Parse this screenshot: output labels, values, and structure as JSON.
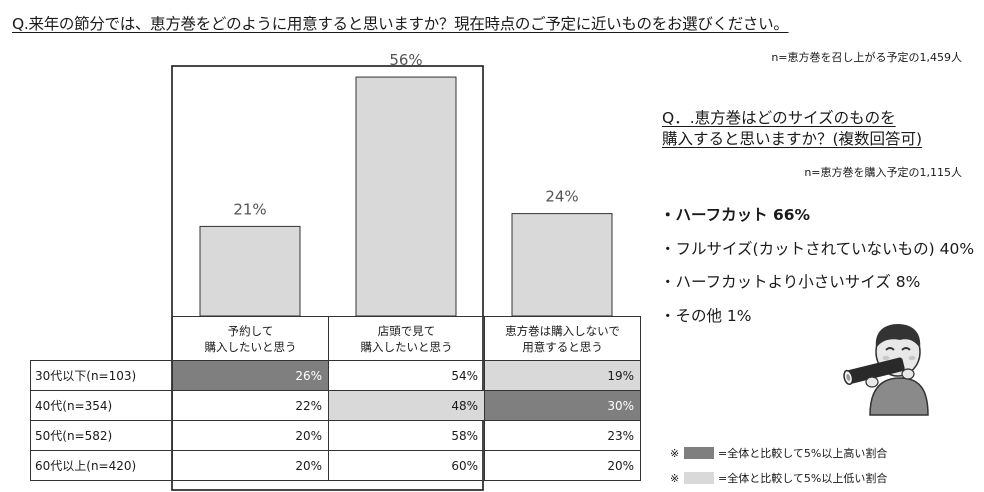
{
  "main_question": "Q.来年の節分では、恵方巻をどのように用意すると思いますか？現在時点のご予定に近いものをお選びください。",
  "main_note": "n=恵方巻を召し上がる予定の1,459人",
  "chart_data": {
    "type": "bar",
    "categories": [
      "予約して\n購入したいと思う",
      "店頭で見て\n購入したいと思う",
      "恵方巻は購入しないで\n用意すると思う"
    ],
    "values": [
      21,
      56,
      24
    ],
    "value_labels": [
      "21%",
      "56%",
      "24%"
    ],
    "highlighted_category_index": 1,
    "ylim": [
      0,
      60
    ],
    "bar_color": "#d9d9d9",
    "grid": false
  },
  "table": {
    "headers": [
      [
        "予約して",
        "購入したいと思う"
      ],
      [
        "店頭で見て",
        "購入したいと思う"
      ],
      [
        "恵方巻は購入しないで",
        "用意すると思う"
      ]
    ],
    "rows": [
      {
        "label": "30代以下(n=103)",
        "values": [
          "26%",
          "54%",
          "19%"
        ],
        "shading": [
          "high",
          "none",
          "low"
        ]
      },
      {
        "label": "40代(n=354)",
        "values": [
          "22%",
          "48%",
          "30%"
        ],
        "shading": [
          "none",
          "low",
          "high"
        ]
      },
      {
        "label": "50代(n=582)",
        "values": [
          "20%",
          "58%",
          "23%"
        ],
        "shading": [
          "none",
          "none",
          "none"
        ]
      },
      {
        "label": "60代以上(n=420)",
        "values": [
          "20%",
          "60%",
          "20%"
        ],
        "shading": [
          "none",
          "none",
          "none"
        ]
      }
    ]
  },
  "side_question": {
    "line1": "Q．.恵方巻はどのサイズのものを",
    "line2": "購入すると思いますか？(複数回答可)"
  },
  "side_note": "n=恵方巻を購入予定の1,115人",
  "size_options": [
    {
      "text": "・ハーフカット  66%",
      "bold": true
    },
    {
      "text": "・フルサイズ(カットされていないもの)  40%",
      "bold": false
    },
    {
      "text": "・ハーフカットより小さいサイズ  8%",
      "bold": false
    },
    {
      "text": "・その他  1%",
      "bold": false
    }
  ],
  "legend": [
    {
      "mark": "※",
      "text": "=全体と比較して5%以上高い割合",
      "color": "#7f7f7f"
    },
    {
      "mark": "※",
      "text": "=全体と比較して5%以上低い割合",
      "color": "#d9d9d9"
    }
  ],
  "illustration": "person-eating-ehomaki-icon"
}
